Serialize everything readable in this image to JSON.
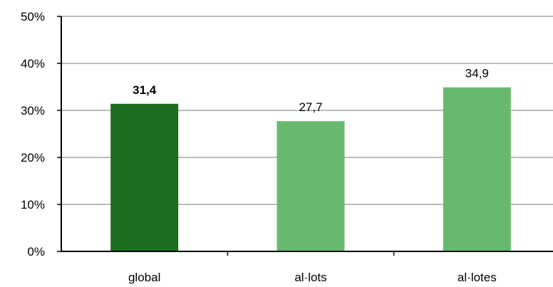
{
  "chart_data": {
    "type": "bar",
    "categories": [
      "global",
      "al·lots",
      "al·lotes"
    ],
    "values": [
      31.4,
      27.7,
      34.9
    ],
    "data_labels": [
      "31,4",
      "27,7",
      "34,9"
    ],
    "bar_colors": [
      "#1b6e1f",
      "#67b96e",
      "#67b96e"
    ],
    "emphasized_index": 0,
    "ylim": [
      0,
      50
    ],
    "yticks": [
      0,
      10,
      20,
      30,
      40,
      50
    ],
    "ytick_labels": [
      "0%",
      "10%",
      "20%",
      "30%",
      "40%",
      "50%"
    ],
    "grid": true,
    "grid_color": "#a6a6a6",
    "axis_color": "#000000",
    "title": "",
    "xlabel": "",
    "ylabel": ""
  }
}
